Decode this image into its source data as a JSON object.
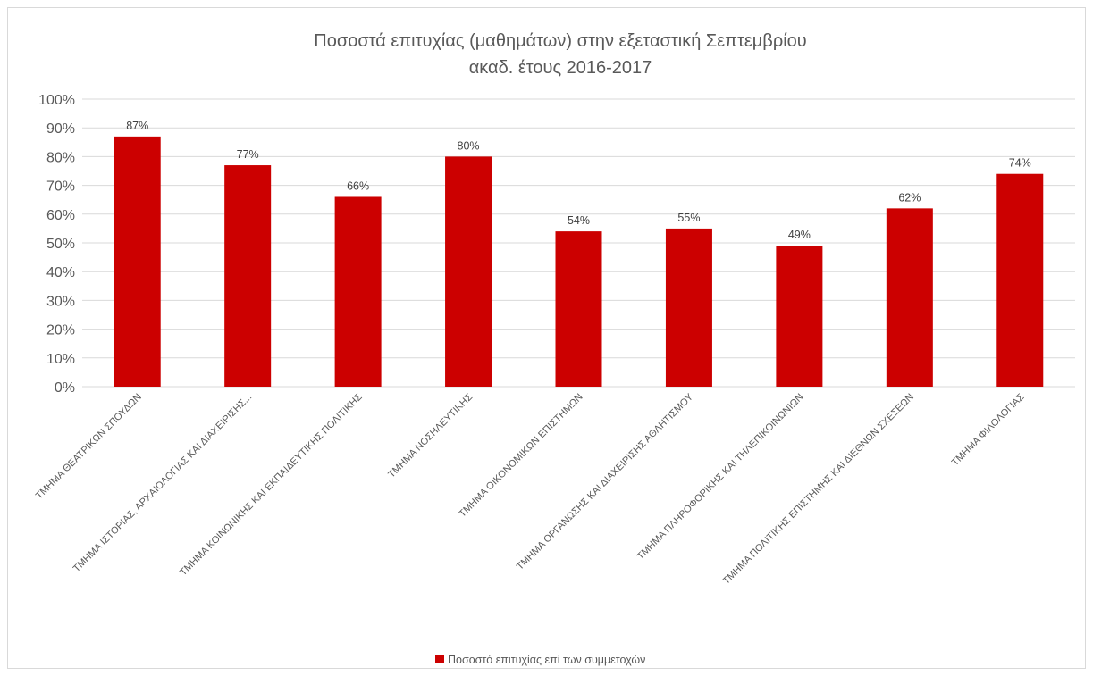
{
  "chart_data": {
    "type": "bar",
    "title": [
      "Ποσοστά επιτυχίας (μαθημάτων) στην εξεταστική Σεπτεμβρίου",
      "ακαδ. έτους 2016-2017"
    ],
    "categories": [
      "ΤΜΗΜΑ ΘΕΑΤΡΙΚΩΝ ΣΠΟΥΔΩΝ",
      "ΤΜΗΜΑ ΙΣΤΟΡΙΑΣ, ΑΡΧΑΙΟΛΟΓΙΑΣ ΚΑΙ ΔΙΑΧΕΙΡΙΣΗΣ...",
      "ΤΜΗΜΑ ΚΟΙΝΩΝΙΚΗΣ ΚΑΙ ΕΚΠΑΙΔΕΥΤΙΚΗΣ ΠΟΛΙΤΙΚΗΣ",
      "ΤΜΗΜΑ ΝΟΣΗΛΕΥΤΙΚΗΣ",
      "ΤΜΗΜΑ ΟΙΚΟΝΟΜΙΚΩΝ ΕΠΙΣΤΗΜΩΝ",
      "ΤΜΗΜΑ ΟΡΓΑΝΩΣΗΣ ΚΑΙ ΔΙΑΧΕΙΡΙΣΗΣ ΑΘΛΗΤΙΣΜΟΥ",
      "ΤΜΗΜΑ ΠΛΗΡΟΦΟΡΙΚΗΣ ΚΑΙ ΤΗΛΕΠΙΚΟΙΝΩΝΙΩΝ",
      "ΤΜΗΜΑ ΠΟΛΙΤΙΚΗΣ ΕΠΙΣΤΗΜΗΣ ΚΑΙ ΔΙΕΘΝΩΝ ΣΧΕΣΕΩΝ",
      "ΤΜΗΜΑ ΦΙΛΟΛΟΓΙΑΣ"
    ],
    "series": [
      {
        "name": "Ποσοστό επιτυχίας επί των συμμετοχών",
        "values": [
          87,
          77,
          66,
          80,
          54,
          55,
          49,
          62,
          74
        ],
        "labels": [
          "87%",
          "77%",
          "66%",
          "80%",
          "54%",
          "55%",
          "49%",
          "62%",
          "74%"
        ],
        "color": "#cc0000"
      }
    ],
    "ylim": [
      0,
      100
    ],
    "yticks": [
      "0%",
      "10%",
      "20%",
      "30%",
      "40%",
      "50%",
      "60%",
      "70%",
      "80%",
      "90%",
      "100%"
    ],
    "grid": true,
    "legend_position": "bottom",
    "gridline_color": "#d9d9d9",
    "axis_color": "#d9d9d9"
  }
}
